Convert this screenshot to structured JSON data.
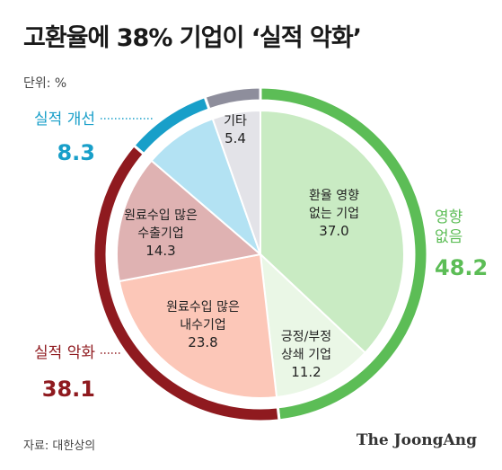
{
  "title": "고환율에 38% 기업이 ‘실적 악화’",
  "unit_label": "단위: %",
  "source": "자료: 대한상의",
  "logo": "The JoongAng",
  "chart_data": {
    "type": "pie",
    "title": "고환율에 38% 기업이 ‘실적 악화’",
    "unit": "%",
    "slices": [
      {
        "label": [
          "환율 영향",
          "없는 기업"
        ],
        "value": 37.0,
        "value_label": "37.0",
        "color": "#c9ebc3"
      },
      {
        "label": [
          "긍정/부정",
          "상쇄 기업"
        ],
        "value": 11.2,
        "value_label": "11.2",
        "color": "#eaf7e6"
      },
      {
        "label": [
          "원료수입 많은",
          "내수기업"
        ],
        "value": 23.8,
        "value_label": "23.8",
        "color": "#fcc7b8"
      },
      {
        "label": [
          "원료수입 많은",
          "수출기업"
        ],
        "value": 14.3,
        "value_label": "14.3",
        "color": "#dfb2b2"
      },
      {
        "label": [
          "실적 개선"
        ],
        "value": 8.3,
        "value_label": "",
        "color": "#b3e2f3",
        "text_hidden": true
      },
      {
        "label": [
          "기타"
        ],
        "value": 5.4,
        "value_label": "5.4",
        "color": "#e3e3e8"
      }
    ],
    "groups": [
      {
        "name": "영향 없음",
        "name_lines": [
          "영향",
          "없음"
        ],
        "value": 48.2,
        "value_label": "48.2",
        "color": "#5cbd56",
        "slices": [
          0,
          1
        ]
      },
      {
        "name": "실적 악화",
        "name_lines": [
          "실적 악화"
        ],
        "value": 38.1,
        "value_label": "38.1",
        "color": "#8f1a1f",
        "slices": [
          2,
          3
        ]
      },
      {
        "name": "실적 개선",
        "name_lines": [
          "실적 개선"
        ],
        "value": 8.3,
        "value_label": "8.3",
        "color": "#189fc9",
        "slices": [
          4
        ]
      },
      {
        "name": "기타",
        "name_lines": [],
        "value": 5.4,
        "value_label": "",
        "color": "#8e8e9c",
        "slices": [
          5
        ]
      }
    ]
  }
}
